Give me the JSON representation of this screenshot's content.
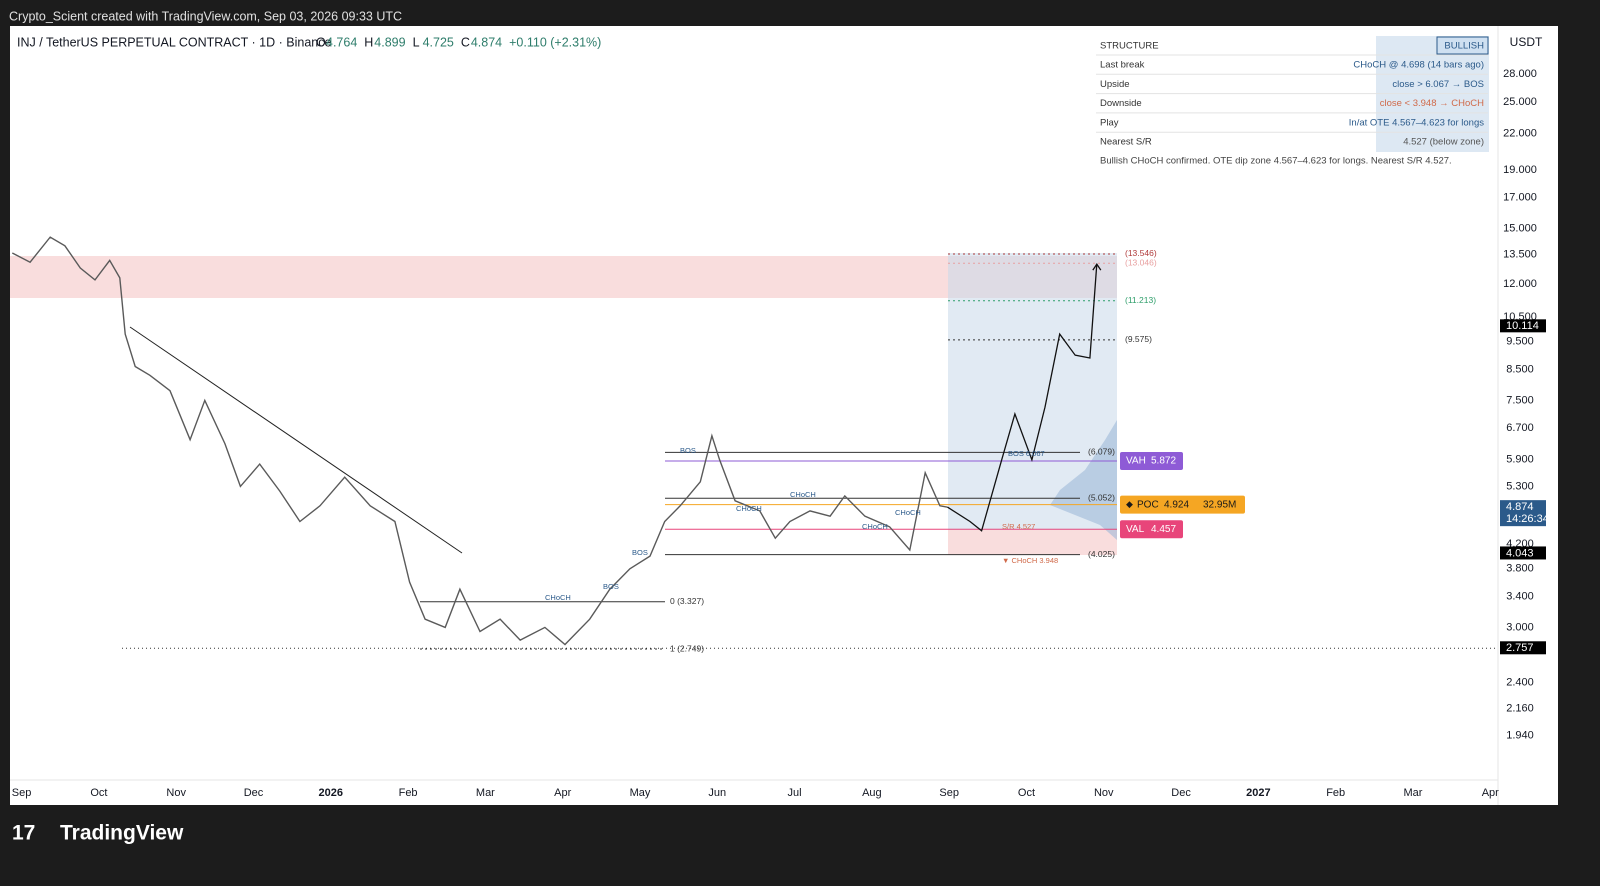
{
  "header": {
    "attribution": "Crypto_Scient created with TradingView.com, Sep 03, 2026 09:33 UTC",
    "logo": "TradingView"
  },
  "chart_data": {
    "type": "line",
    "title": "INJ / TetherUS PERPETUAL CONTRACT · 1D · Binance",
    "ohlc": [
      {
        "label": "O",
        "value": 4.764
      },
      {
        "label": "H",
        "value": 4.899
      },
      {
        "label": "L",
        "value": 4.725
      },
      {
        "label": "C",
        "value": 4.874
      }
    ],
    "change": "+0.110 (+2.31%)",
    "currency": "USDT",
    "log_scale": true,
    "grid": false,
    "color": "#5a5a5a",
    "x": [
      -0.12,
      0.11,
      0.37,
      0.56,
      0.76,
      0.95,
      1.14,
      1.27,
      1.34,
      1.47,
      1.66,
      1.92,
      2.18,
      2.37,
      2.63,
      2.83,
      3.08,
      3.34,
      3.6,
      3.86,
      4.18,
      4.51,
      4.83,
      5.02,
      5.22,
      5.48,
      5.67,
      5.93,
      6.19,
      6.45,
      6.77,
      7.03,
      7.35,
      7.61,
      7.87,
      8.13,
      8.32,
      8.52,
      8.78,
      8.93,
      9.03,
      9.23,
      9.55,
      9.75,
      9.94,
      10.2,
      10.46,
      10.65,
      10.91,
      11.23,
      11.49,
      11.69,
      11.88,
      11.98
    ],
    "values": [
      13.6,
      13.1,
      14.5,
      14.0,
      12.8,
      12.2,
      13.2,
      12.3,
      9.8,
      8.6,
      8.3,
      7.8,
      6.4,
      7.5,
      6.3,
      5.3,
      5.8,
      5.2,
      4.6,
      4.9,
      5.5,
      4.9,
      4.6,
      3.6,
      3.1,
      3.0,
      3.5,
      2.95,
      3.1,
      2.85,
      3.0,
      2.8,
      3.1,
      3.5,
      3.8,
      4.0,
      4.6,
      4.9,
      5.4,
      6.5,
      5.9,
      5.0,
      4.8,
      4.3,
      4.6,
      4.8,
      4.7,
      5.1,
      4.7,
      4.5,
      4.1,
      5.6,
      4.9,
      4.874
    ],
    "projection": {
      "x": [
        11.98,
        12.27,
        12.42,
        12.68,
        12.85,
        13.07,
        13.24,
        13.43,
        13.63,
        13.82,
        13.91
      ],
      "values": [
        4.874,
        4.6,
        4.43,
        5.9,
        7.1,
        5.9,
        7.3,
        9.8,
        9.0,
        8.9,
        13.0
      ]
    },
    "xlim": [
      -0.15,
      19.1
    ],
    "xticks": [
      {
        "value": 0,
        "label": "Sep"
      },
      {
        "value": 1,
        "label": "Oct"
      },
      {
        "value": 2,
        "label": "Nov"
      },
      {
        "value": 3,
        "label": "Dec"
      },
      {
        "value": 4,
        "label": "2026"
      },
      {
        "value": 5,
        "label": "Feb"
      },
      {
        "value": 6,
        "label": "Mar"
      },
      {
        "value": 7,
        "label": "Apr"
      },
      {
        "value": 8,
        "label": "May"
      },
      {
        "value": 9,
        "label": "Jun"
      },
      {
        "value": 10,
        "label": "Jul"
      },
      {
        "value": 11,
        "label": "Aug"
      },
      {
        "value": 12,
        "label": "Sep"
      },
      {
        "value": 13,
        "label": "Oct"
      },
      {
        "value": 14,
        "label": "Nov"
      },
      {
        "value": 15,
        "label": "Dec"
      },
      {
        "value": 16,
        "label": "2027"
      },
      {
        "value": 17,
        "label": "Feb"
      },
      {
        "value": 18,
        "label": "Mar"
      },
      {
        "value": 19,
        "label": "Apr"
      }
    ],
    "ylim": [
      1.62,
      34
    ],
    "yticks": [
      {
        "value": 28,
        "label": "28.000"
      },
      {
        "value": 25,
        "label": "25.000"
      },
      {
        "value": 22,
        "label": "22.000"
      },
      {
        "value": 19,
        "label": "19.000"
      },
      {
        "value": 17,
        "label": "17.000"
      },
      {
        "value": 15,
        "label": "15.000"
      },
      {
        "value": 13.5,
        "label": "13.500"
      },
      {
        "value": 12,
        "label": "12.000"
      },
      {
        "value": 10.5,
        "label": "10.500"
      },
      {
        "value": 9.5,
        "label": "9.500"
      },
      {
        "value": 8.5,
        "label": "8.500"
      },
      {
        "value": 7.5,
        "label": "7.500"
      },
      {
        "value": 6.7,
        "label": "6.700"
      },
      {
        "value": 5.9,
        "label": "5.900"
      },
      {
        "value": 5.3,
        "label": "5.300"
      },
      {
        "value": 4.2,
        "label": "4.200"
      },
      {
        "value": 3.8,
        "label": "3.800"
      },
      {
        "value": 3.4,
        "label": "3.400"
      },
      {
        "value": 3,
        "label": "3.000"
      },
      {
        "value": 2.4,
        "label": "2.400"
      },
      {
        "value": 2.16,
        "label": "2.160"
      },
      {
        "value": 1.94,
        "label": "1.940"
      }
    ],
    "levels": [
      {
        "value": 13.546,
        "label": "(13.546)",
        "color": "#b03a3a"
      },
      {
        "value": 13.046,
        "label": "(13.046)",
        "color": "#e8a0a0"
      },
      {
        "value": 11.213,
        "label": "(11.213)",
        "color": "#2e9e6a"
      },
      {
        "value": 9.575,
        "label": "(9.575)",
        "color": "#333333"
      },
      {
        "value": 6.079,
        "label": "(6.079)",
        "color": "#333333"
      },
      {
        "value": 5.052,
        "label": "(5.052)",
        "color": "#333333"
      },
      {
        "value": 4.025,
        "label": "(4.025)",
        "color": "#333333"
      },
      {
        "value": 3.327,
        "label": "0 (3.327)",
        "color": "#333333"
      },
      {
        "value": 2.749,
        "label": "1 (2.749)",
        "color": "#333333"
      }
    ],
    "price_tags": [
      {
        "value": 10.114,
        "label": "10.114",
        "color": "#000000"
      },
      {
        "value": 4.874,
        "label": "4.874",
        "timer": "14:26:34",
        "color": "#2b5a8a"
      },
      {
        "value": 4.043,
        "label": "4.043",
        "color": "#000000"
      },
      {
        "value": 2.757,
        "label": "2.757",
        "color": "#000000"
      }
    ],
    "volume_profile": [
      {
        "name": "VAH",
        "value": 5.872,
        "label": "5.872",
        "color": "#8e5bd6"
      },
      {
        "name": "POC",
        "value": 4.924,
        "label": "4.924",
        "volume": "32.95M",
        "color": "#f5a623"
      },
      {
        "name": "VAL",
        "value": 4.457,
        "label": "4.457",
        "color": "#e8457a"
      }
    ],
    "annotations": [
      "BOS",
      "CHoCH",
      "BOS",
      "BOS",
      "CHoCH",
      "CHoCH",
      "CHoCH",
      "CHoCH",
      "BOS 6.067",
      "S/R 4.527",
      "▼ CHoCH 3.948"
    ],
    "structure": {
      "title": "STRUCTURE",
      "badge": "BULLISH",
      "rows": [
        [
          "Last break",
          "CHoCH @ 4.698  (14 bars ago)"
        ],
        [
          "Upside",
          "close > 6.067 → BOS"
        ],
        [
          "Downside",
          "close < 3.948 → CHoCH"
        ],
        [
          "Play",
          "In/at OTE 4.567–4.623 for longs"
        ],
        [
          "Nearest S/R",
          "4.527 (below zone)"
        ]
      ],
      "note": "Bullish CHoCH confirmed. OTE dip zone 4.567–4.623 for longs. Nearest S/R 4.527."
    }
  }
}
